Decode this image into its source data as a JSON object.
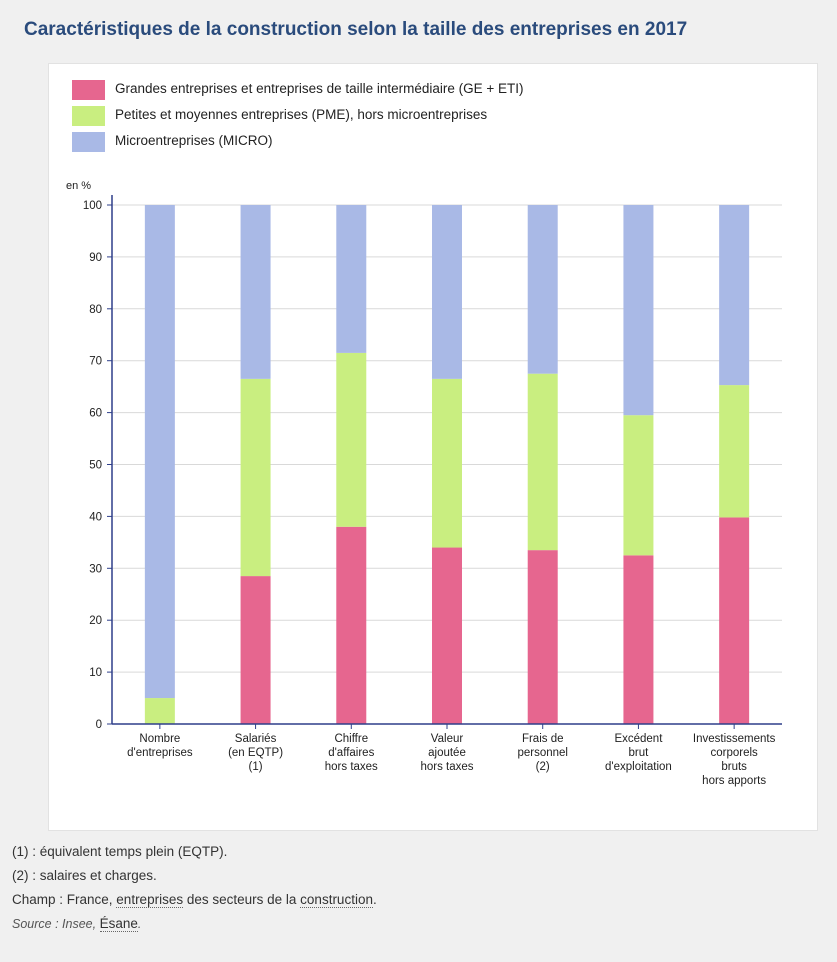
{
  "title": "Caractéristiques de la construction selon la taille des entreprises en 2017",
  "colors": {
    "ge_eti": "#e6668f",
    "pme": "#c9ee80",
    "micro": "#a9b9e6"
  },
  "chart_data": {
    "type": "bar",
    "stacked": true,
    "ylabel": "en %",
    "ylim": [
      0,
      100
    ],
    "yticks": [
      "0",
      "10",
      "20",
      "30",
      "40",
      "50",
      "60",
      "70",
      "80",
      "90",
      "100"
    ],
    "grid": true,
    "legend_position": "top-left",
    "categories": [
      [
        "Nombre",
        "d'entreprises"
      ],
      [
        "Salariés",
        "(en EQTP)",
        "(1)"
      ],
      [
        "Chiffre",
        "d'affaires",
        "hors taxes"
      ],
      [
        "Valeur",
        "ajoutée",
        "hors taxes"
      ],
      [
        "Frais de",
        "personnel",
        "(2)"
      ],
      [
        "Excédent",
        "brut",
        "d'exploitation"
      ],
      [
        "Investissements",
        "corporels",
        "bruts",
        "hors apports"
      ]
    ],
    "series": [
      {
        "name": "Grandes entreprises et entreprises de taille intermédiaire (GE + ETI)",
        "color": "#e6668f",
        "values": [
          0.1,
          28.5,
          38,
          34,
          33.5,
          32.5,
          39.8
        ]
      },
      {
        "name": "Petites et moyennes entreprises (PME), hors microentreprises",
        "color": "#c9ee80",
        "values": [
          4.9,
          38,
          33.5,
          32.5,
          34,
          27,
          25.5
        ]
      },
      {
        "name": "Microentreprises (MICRO)",
        "color": "#a9b9e6",
        "values": [
          95,
          33.5,
          28.5,
          33.5,
          32.5,
          40.5,
          34.7
        ]
      }
    ]
  },
  "notes": {
    "n1": "(1) : équivalent temps plein (EQTP).",
    "n2": "(2) : salaires et charges.",
    "champ_prefix": "Champ : France, ",
    "champ_link1": "entreprises",
    "champ_mid": " des secteurs de la ",
    "champ_link2": "construction",
    "champ_suffix": ".",
    "source_prefix": "Source : Insee, ",
    "source_link": "Ésane",
    "source_suffix": "."
  }
}
